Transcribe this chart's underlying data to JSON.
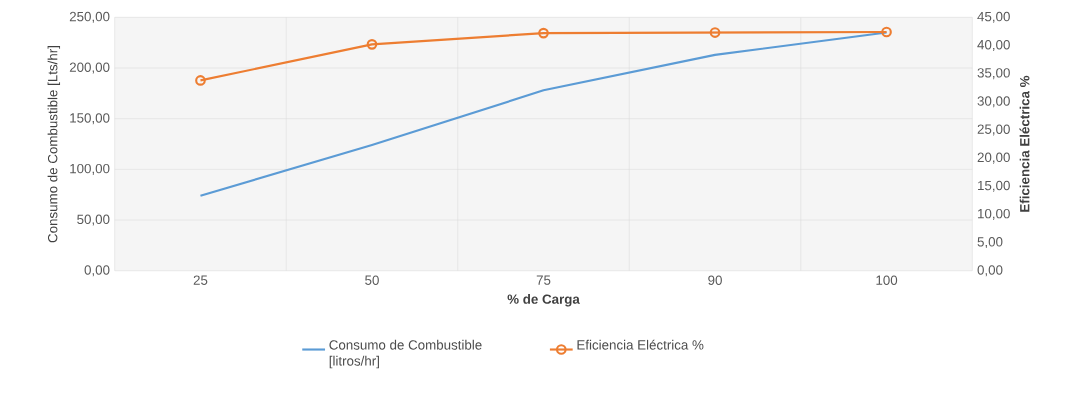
{
  "chart_data": {
    "type": "line",
    "xlabel": "% de Carga",
    "ylabel": "Consumo de Combustible  [Lts/hr]",
    "y2label": "Eficiencia Eléctrica %",
    "categories": [
      "25",
      "50",
      "75",
      "90",
      "100"
    ],
    "series": [
      {
        "name": "Consumo de Combustible [litros/hr]",
        "color": "#5b9bd5",
        "values": [
          74,
          124,
          178,
          213,
          235
        ],
        "marker": "none"
      },
      {
        "name": "Eficiencia Eléctrica %",
        "color": "#ed7d31",
        "values": [
          33.8,
          40.2,
          42.2,
          42.3,
          42.4
        ],
        "axis": "y2",
        "marker": "circle"
      }
    ],
    "ylim": [
      0,
      250
    ],
    "yticks": [
      {
        "value": 0,
        "label": "0,00"
      },
      {
        "value": 50,
        "label": "50,00"
      },
      {
        "value": 100,
        "label": "100,00"
      },
      {
        "value": 150,
        "label": "150,00"
      },
      {
        "value": 200,
        "label": "200,00"
      },
      {
        "value": 250,
        "label": "250,00"
      }
    ],
    "y2lim": [
      0,
      45
    ],
    "y2ticks": [
      {
        "value": 0,
        "label": "0,00"
      },
      {
        "value": 5,
        "label": "5,00"
      },
      {
        "value": 10,
        "label": "10,00"
      },
      {
        "value": 15,
        "label": "15,00"
      },
      {
        "value": 20,
        "label": "20,00"
      },
      {
        "value": 25,
        "label": "25,00"
      },
      {
        "value": 30,
        "label": "30,00"
      },
      {
        "value": 35,
        "label": "35,00"
      },
      {
        "value": 40,
        "label": "40,00"
      },
      {
        "value": 45,
        "label": "45,00"
      }
    ],
    "grid": true,
    "legend": "bottom"
  }
}
